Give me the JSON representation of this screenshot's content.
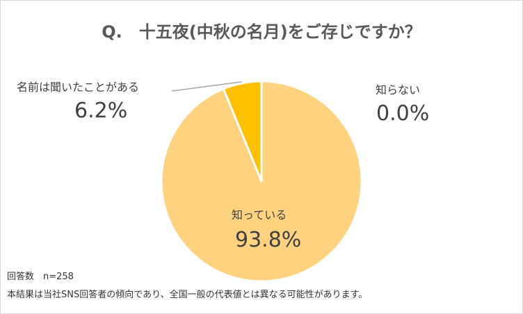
{
  "title": "Q.　十五夜(中秋の名月)をご存じですか？",
  "chart_data": {
    "type": "pie",
    "slices": [
      {
        "label": "知っている",
        "value": 93.8,
        "display": "93.8%",
        "color": "#ffd280"
      },
      {
        "label": "名前は聞いたことがある",
        "value": 6.2,
        "display": "6.2%",
        "color": "#ffc000"
      },
      {
        "label": "知らない",
        "value": 0.0,
        "display": "0.0%",
        "color": "#ffe699"
      }
    ],
    "start_angle_deg": 0,
    "direction": "clockwise",
    "slice_border_color": "#ffffff"
  },
  "labels": {
    "know_name": "知っている",
    "know_value": "93.8%",
    "heard_name": "名前は聞いたことがある",
    "heard_value": "6.2%",
    "unknown_name": "知らない",
    "unknown_value": "0.0%"
  },
  "notes": {
    "count": "回答数　n=258",
    "disclaimer": "本結果は当社SNS回答者の傾向であり、全国一般の代表値とは異なる可能性があります。"
  }
}
